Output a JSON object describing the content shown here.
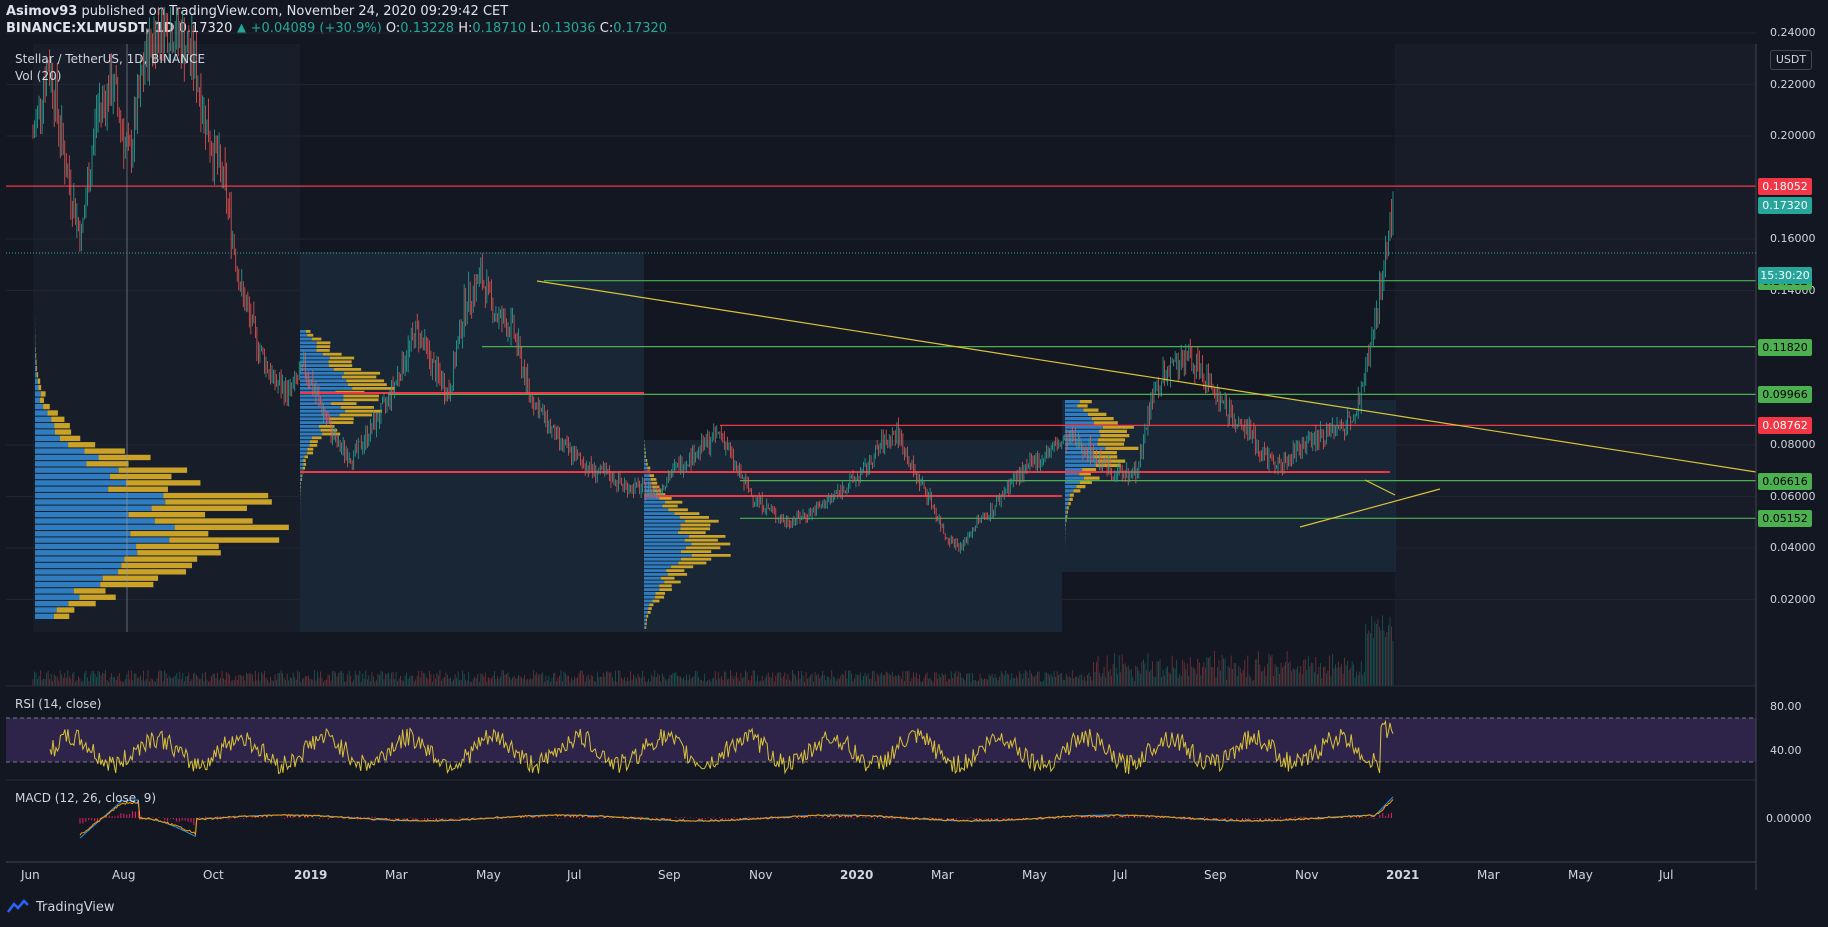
{
  "header": {
    "author": "Asimov93",
    "published": "published on TradingView.com, November 24, 2020 09:29:42 CET",
    "symbol": "BINANCE:XLMUSDT, 1D",
    "last": "0.17320",
    "change": "▲ +0.04089 (+30.9%)",
    "o_label": "O:",
    "o": "0.13228",
    "h_label": "H:",
    "h": "0.18710",
    "l_label": "L:",
    "l": "0.13036",
    "c_label": "C:",
    "c": "0.17320"
  },
  "main_pane": {
    "title": "Stellar / TetherUS, 1D, BINANCE",
    "vol_label": "Vol (20)",
    "currency": "USDT",
    "countdown": "15:30:20"
  },
  "rsi_pane": {
    "title": "RSI (14, close)",
    "ticks": [
      "80.00",
      "40.00"
    ]
  },
  "macd_pane": {
    "title": "MACD (12, 26, close, 9)",
    "ticks": [
      "0.00000"
    ]
  },
  "colors": {
    "background": "#131722",
    "up": "#26a69a",
    "down": "#ef5350",
    "support_line": "#4caf50",
    "resistance_line": "#f23645",
    "trendline": "#d8c23a",
    "volume_profile_up": "#2f7dc0",
    "volume_profile_down": "#c9a227",
    "rsi_band": "#3b2a5a"
  },
  "footer": {
    "brand": "TradingView"
  },
  "chart_data": {
    "type": "candlestick",
    "title": "Stellar / TetherUS, 1D, BINANCE",
    "y_ticks": [
      "0.24000",
      "0.22000",
      "0.20000",
      "0.16000",
      "0.14000",
      "0.08000",
      "0.06000",
      "0.04000",
      "0.02000"
    ],
    "y_range": [
      0.0,
      0.25
    ],
    "x_ticks": [
      "Jun",
      "Aug",
      "Oct",
      "2019",
      "Mar",
      "May",
      "Jul",
      "Sep",
      "Nov",
      "2020",
      "Mar",
      "May",
      "Jul",
      "Sep",
      "Nov",
      "2021",
      "Mar",
      "May",
      "Jul"
    ],
    "levels": [
      {
        "label": "0.18052",
        "value": 0.18052,
        "kind": "resistance"
      },
      {
        "label": "0.17320",
        "value": 0.1732,
        "kind": "last"
      },
      {
        "label": "0.14382",
        "value": 0.14382,
        "kind": "support"
      },
      {
        "label": "0.11820",
        "value": 0.1182,
        "kind": "support"
      },
      {
        "label": "0.09966",
        "value": 0.09966,
        "kind": "support"
      },
      {
        "label": "0.08762",
        "value": 0.08762,
        "kind": "resistance"
      },
      {
        "label": "0.06616",
        "value": 0.06616,
        "kind": "support"
      },
      {
        "label": "0.05152",
        "value": 0.05152,
        "kind": "support"
      }
    ],
    "series": [
      {
        "values": [
          0.2,
          0.23,
          0.19,
          0.16,
          0.21,
          0.22,
          0.19,
          0.23,
          0.245,
          0.24,
          0.23,
          0.2,
          0.18,
          0.14,
          0.12,
          0.105,
          0.1,
          0.11,
          0.095,
          0.08,
          0.075,
          0.085,
          0.095,
          0.11,
          0.125,
          0.11,
          0.1,
          0.135,
          0.145,
          0.13,
          0.125,
          0.1,
          0.09,
          0.08,
          0.075,
          0.07,
          0.068,
          0.064,
          0.063,
          0.062,
          0.07,
          0.075,
          0.08,
          0.085,
          0.07,
          0.06,
          0.055,
          0.05,
          0.052,
          0.055,
          0.06,
          0.065,
          0.07,
          0.08,
          0.085,
          0.07,
          0.06,
          0.045,
          0.04,
          0.05,
          0.055,
          0.065,
          0.07,
          0.075,
          0.08,
          0.082,
          0.078,
          0.072,
          0.068,
          0.07,
          0.1,
          0.11,
          0.115,
          0.108,
          0.1,
          0.09,
          0.085,
          0.075,
          0.072,
          0.078,
          0.082,
          0.085,
          0.087,
          0.1,
          0.132,
          0.1732
        ]
      }
    ]
  }
}
